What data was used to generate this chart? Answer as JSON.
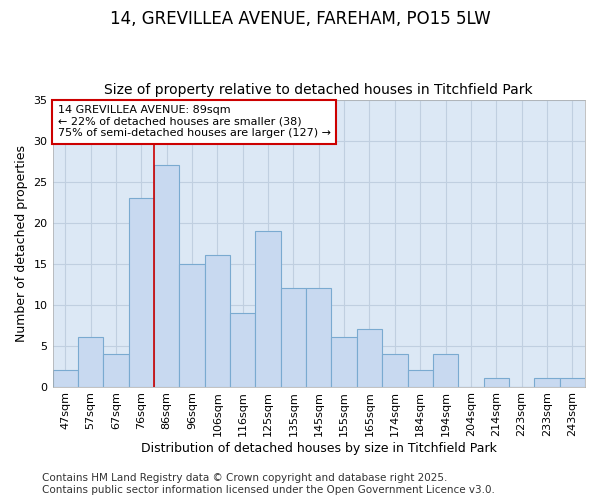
{
  "title": "14, GREVILLEA AVENUE, FAREHAM, PO15 5LW",
  "subtitle": "Size of property relative to detached houses in Titchfield Park",
  "xlabel": "Distribution of detached houses by size in Titchfield Park",
  "ylabel": "Number of detached properties",
  "categories": [
    "47sqm",
    "57sqm",
    "67sqm",
    "76sqm",
    "86sqm",
    "96sqm",
    "106sqm",
    "116sqm",
    "125sqm",
    "135sqm",
    "145sqm",
    "155sqm",
    "165sqm",
    "174sqm",
    "184sqm",
    "194sqm",
    "204sqm",
    "214sqm",
    "223sqm",
    "233sqm",
    "243sqm"
  ],
  "values": [
    2,
    6,
    4,
    23,
    27,
    15,
    16,
    9,
    19,
    12,
    12,
    6,
    7,
    4,
    2,
    4,
    0,
    1,
    0,
    1,
    1
  ],
  "bar_color": "#c8d9f0",
  "bar_edge_color": "#7aaad0",
  "vline_x_index": 4,
  "vline_color": "#cc0000",
  "annotation_text": "14 GREVILLEA AVENUE: 89sqm\n← 22% of detached houses are smaller (38)\n75% of semi-detached houses are larger (127) →",
  "annotation_box_color": "#ffffff",
  "annotation_box_edge": "#cc0000",
  "ylim": [
    0,
    35
  ],
  "yticks": [
    0,
    5,
    10,
    15,
    20,
    25,
    30,
    35
  ],
  "grid_color": "#c0cfe0",
  "plot_bg_color": "#dce8f5",
  "figure_bg_color": "#ffffff",
  "footer_text": "Contains HM Land Registry data © Crown copyright and database right 2025.\nContains public sector information licensed under the Open Government Licence v3.0.",
  "title_fontsize": 12,
  "subtitle_fontsize": 10,
  "axis_label_fontsize": 9,
  "tick_fontsize": 8,
  "annotation_fontsize": 8,
  "footer_fontsize": 7.5
}
